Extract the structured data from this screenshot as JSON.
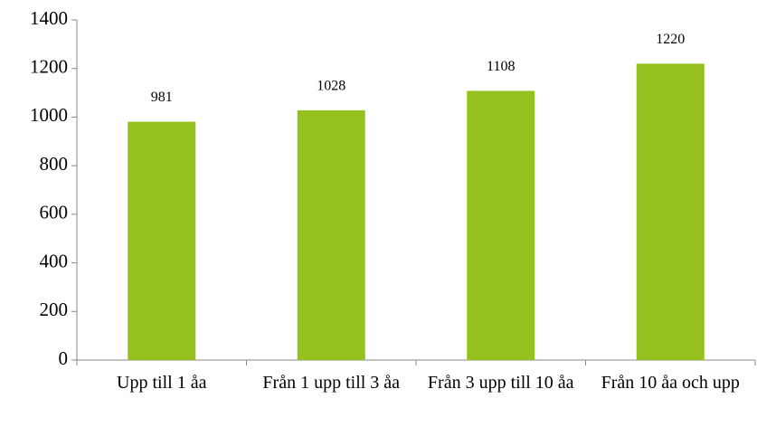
{
  "chart_data": {
    "type": "bar",
    "categories": [
      "Upp till 1 åa",
      "Från 1 upp till 3 åa",
      "Från 3 upp till 10 åa",
      "Från 10 åa och upp"
    ],
    "values": [
      981,
      1028,
      1108,
      1220
    ],
    "color": "#95c11f",
    "ylim": [
      0,
      1400
    ],
    "yticks": [
      0,
      200,
      400,
      600,
      800,
      1000,
      1200,
      1400
    ],
    "grid": false
  }
}
